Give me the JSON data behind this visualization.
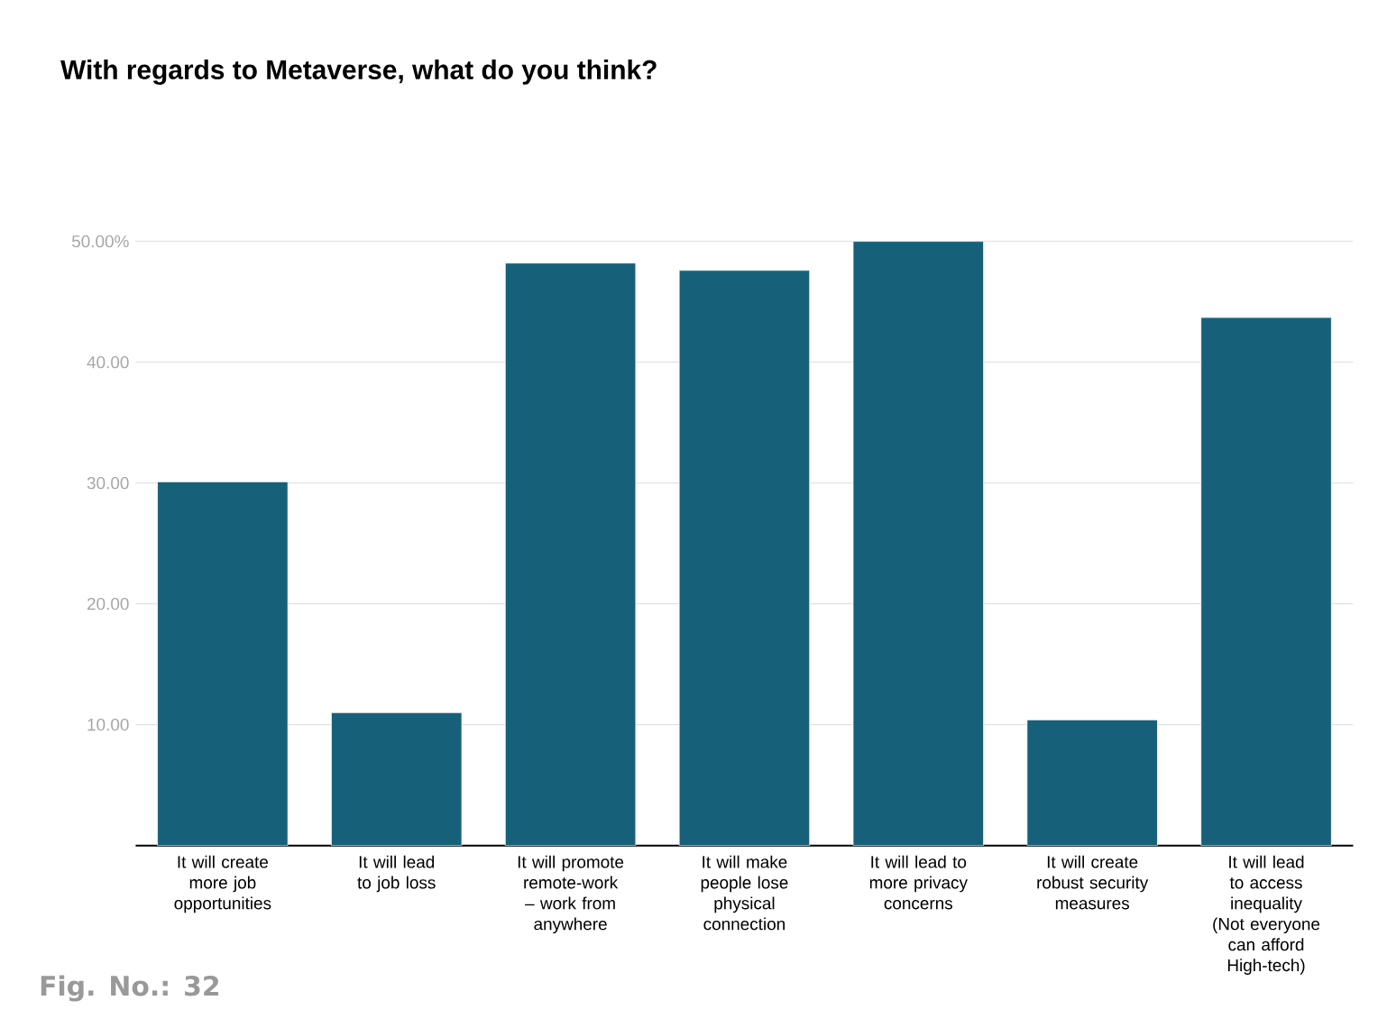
{
  "chart_data": {
    "type": "bar",
    "title": "With regards to Metaverse, what do you think?",
    "categories": [
      "It will create more job opportunities",
      "It will lead to job loss",
      "It will promote remote-work – work from anywhere",
      "It will make people lose physical connection",
      "It will lead to more privacy concerns",
      "It will create robust security measures",
      "It will lead to access inequality (Not everyone can afford High-tech)"
    ],
    "values": [
      30.1,
      11.0,
      48.2,
      47.6,
      50.0,
      10.4,
      43.7
    ],
    "color": "#17607a",
    "ylim": [
      0,
      50
    ],
    "yticks": [
      {
        "value": 0,
        "label": null
      },
      {
        "value": 10,
        "label": "10.00"
      },
      {
        "value": 20,
        "label": "20.00"
      },
      {
        "value": 30,
        "label": "30.00"
      },
      {
        "value": 40,
        "label": "40.00"
      },
      {
        "value": 50,
        "label": "50.00%"
      }
    ],
    "grid": "y",
    "annotations": [
      "Fig. No.: 32"
    ]
  }
}
